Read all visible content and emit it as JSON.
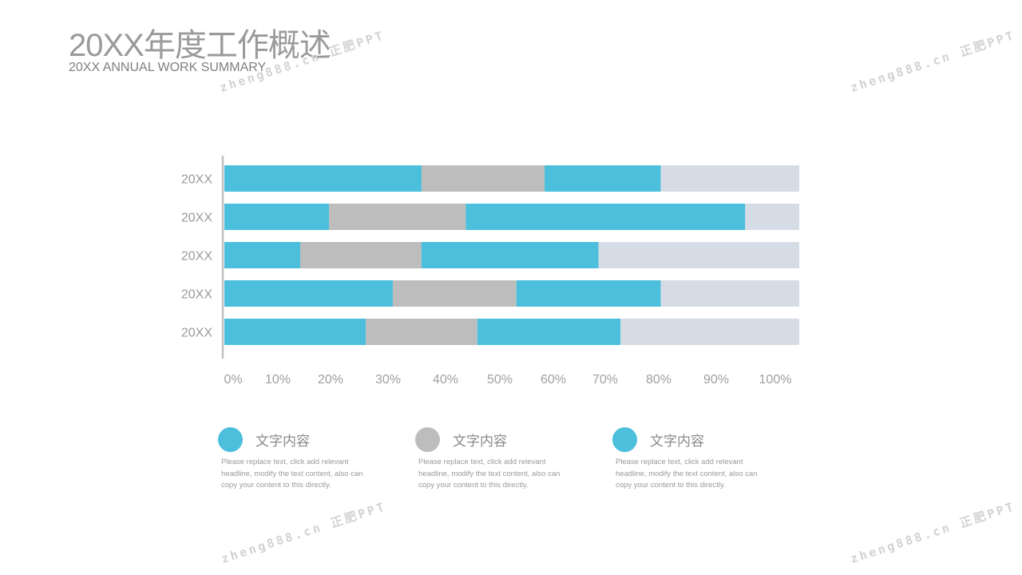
{
  "slide": {
    "title": "20XX年度工作概述",
    "subtitle": "20XX ANNUAL WORK SUMMARY"
  },
  "watermark": "zheng888.cn 正肥PPT",
  "colors": {
    "accent": "#4bbfdc",
    "gray": "#bdbdbd",
    "track": "#d6dce5",
    "axis": "#bfbfbf",
    "text": "#9a9a9a"
  },
  "chart_data": {
    "type": "bar",
    "orientation": "horizontal",
    "stacked": true,
    "categories": [
      "20XX",
      "20XX",
      "20XX",
      "20XX",
      "20XX"
    ],
    "xlim": [
      0,
      100
    ],
    "x_ticks": [
      "0%",
      "10%",
      "20%",
      "30%",
      "40%",
      "50%",
      "60%",
      "70%",
      "80%",
      "90%",
      "100%"
    ],
    "series": [
      {
        "values": [
          34.3,
          18.2,
          13.2,
          29.3,
          24.6
        ],
        "color": "#4bbfdc"
      },
      {
        "values": [
          21.4,
          23.8,
          21.1,
          21.5,
          19.4
        ],
        "color": "#bdbdbd"
      },
      {
        "values": [
          20.2,
          48.6,
          30.8,
          25.1,
          24.9
        ],
        "color": "#4bbfdc"
      },
      {
        "values": [
          24.1,
          9.4,
          34.9,
          24.1,
          31.1
        ],
        "color": "#d6dce5"
      }
    ],
    "grid": false
  },
  "legend": [
    {
      "label": "文字内容",
      "color": "#4bbfdc",
      "desc": "Please replace text, click add relevant headline, modify the text content, also can copy your content to this directly."
    },
    {
      "label": "文字内容",
      "color": "#bdbdbd",
      "desc": "Please replace text, click add relevant headline, modify the text content, also can copy your content to this directly."
    },
    {
      "label": "文字内容",
      "color": "#4bbfdc",
      "desc": "Please replace text, click add relevant headline, modify the text content, also can copy your content to this directly."
    }
  ]
}
